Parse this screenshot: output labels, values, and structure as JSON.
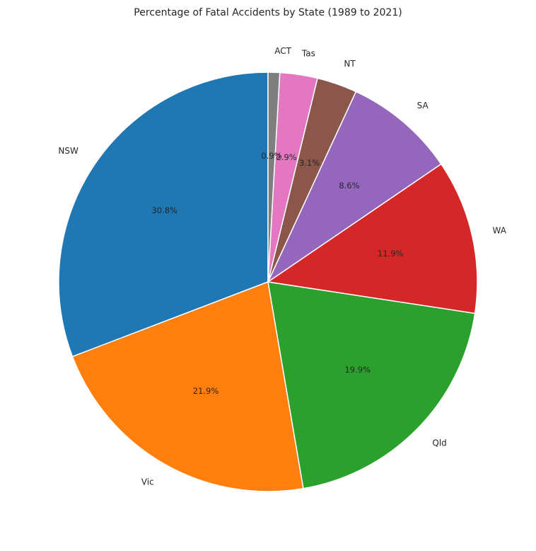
{
  "chart_data": {
    "type": "pie",
    "title": "Percentage of Fatal Accidents by State (1989 to 2021)",
    "start_angle_deg": 90,
    "direction": "counterclockwise",
    "slices": [
      {
        "label": "NSW",
        "value": 30.8,
        "pct_label": "30.8%",
        "color": "#1f77b4"
      },
      {
        "label": "Vic",
        "value": 21.9,
        "pct_label": "21.9%",
        "color": "#ff7f0e"
      },
      {
        "label": "Qld",
        "value": 19.9,
        "pct_label": "19.9%",
        "color": "#2ca02c"
      },
      {
        "label": "WA",
        "value": 11.9,
        "pct_label": "11.9%",
        "color": "#d62728"
      },
      {
        "label": "SA",
        "value": 8.6,
        "pct_label": "8.6%",
        "color": "#9467bd"
      },
      {
        "label": "NT",
        "value": 3.1,
        "pct_label": "3.1%",
        "color": "#8c564b"
      },
      {
        "label": "Tas",
        "value": 2.9,
        "pct_label": "2.9%",
        "color": "#e377c2"
      },
      {
        "label": "ACT",
        "value": 0.9,
        "pct_label": "0.9%",
        "color": "#7f7f7f"
      }
    ]
  }
}
